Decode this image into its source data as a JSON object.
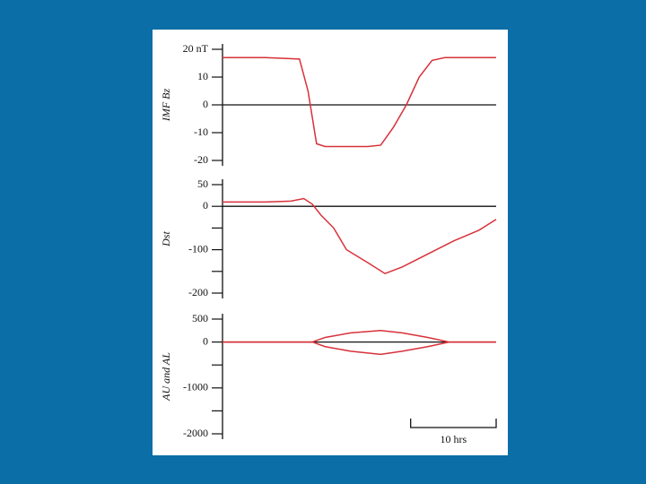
{
  "chart_data": [
    {
      "type": "line",
      "ylabel": "IMF Bz",
      "xlim": [
        0,
        32
      ],
      "ylim": [
        -20,
        20
      ],
      "yticks": [
        {
          "value": 20,
          "label": "20 nT"
        },
        10,
        0,
        -10,
        -20
      ],
      "x": [
        0,
        5,
        9,
        10,
        11,
        12,
        17,
        18.5,
        20,
        21.5,
        23,
        24.5,
        26,
        32
      ],
      "values": [
        17,
        17,
        16.5,
        5,
        -14,
        -15,
        -15,
        -14.5,
        -8,
        0,
        10,
        16,
        17,
        17
      ],
      "color": "#d8313a"
    },
    {
      "type": "line",
      "ylabel": "Dst",
      "xlim": [
        0,
        32
      ],
      "ylim": [
        -200,
        50
      ],
      "yticks": [
        50,
        0,
        -100,
        -200
      ],
      "minor_yticks": [
        -50,
        -150
      ],
      "x": [
        0,
        5,
        8,
        9.5,
        10.5,
        11.5,
        13,
        14.5,
        17,
        19,
        21,
        24,
        27,
        30,
        32
      ],
      "values": [
        10,
        10,
        12,
        18,
        5,
        -20,
        -50,
        -100,
        -130,
        -155,
        -140,
        -110,
        -80,
        -55,
        -30
      ],
      "color": "#d8313a"
    },
    {
      "type": "line",
      "ylabel": "AU and AL",
      "xlim": [
        0,
        32
      ],
      "ylim": [
        -2000,
        500
      ],
      "yticks": [
        500,
        0,
        -1000,
        -2000
      ],
      "minor_yticks": [
        -500,
        -1500
      ],
      "x": [
        0,
        5,
        10.5,
        12,
        15,
        18.5,
        21,
        24,
        26.5,
        32
      ],
      "series": [
        {
          "color": "#d8313a",
          "values": [
            0,
            0,
            0,
            100,
            200,
            250,
            200,
            100,
            0,
            0
          ]
        },
        {
          "color": "#d8313a",
          "values": [
            0,
            0,
            0,
            -100,
            -200,
            -270,
            -200,
            -100,
            0,
            0
          ]
        }
      ],
      "scale_bar": {
        "value": 10,
        "label": "10 hrs"
      }
    }
  ]
}
